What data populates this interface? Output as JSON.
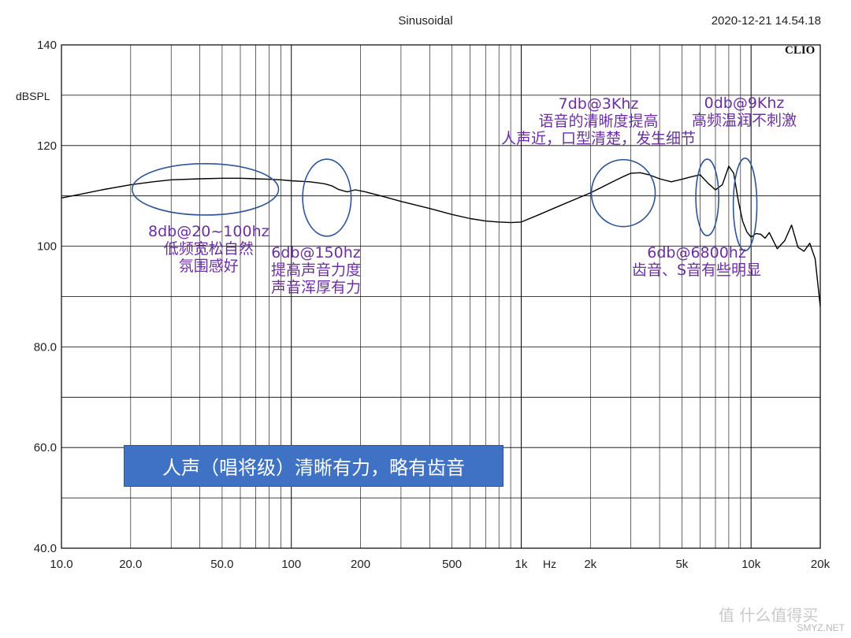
{
  "header": {
    "title": "Sinusoidal",
    "timestamp": "2020-12-21 14.54.18",
    "brand": "CLIO"
  },
  "chart_data": {
    "type": "line",
    "title": "Sinusoidal",
    "xlabel": "Hz",
    "ylabel": "dBSPL",
    "x_scale": "log",
    "xlim": [
      10,
      20000
    ],
    "ylim": [
      40,
      140
    ],
    "grid": true,
    "x_tick_labels": [
      {
        "value": 10,
        "label": "10.0"
      },
      {
        "value": 20,
        "label": "20.0"
      },
      {
        "value": 50,
        "label": "50.0"
      },
      {
        "value": 100,
        "label": "100"
      },
      {
        "value": 200,
        "label": "200"
      },
      {
        "value": 500,
        "label": "500"
      },
      {
        "value": 1000,
        "label": "1k"
      },
      {
        "value": 2000,
        "label": "2k"
      },
      {
        "value": 5000,
        "label": "5k"
      },
      {
        "value": 10000,
        "label": "10k"
      },
      {
        "value": 20000,
        "label": "20k"
      }
    ],
    "y_tick_labels": [
      {
        "value": 140,
        "label": "140"
      },
      {
        "value": 120,
        "label": "120"
      },
      {
        "value": 100,
        "label": "100"
      },
      {
        "value": 80,
        "label": "80.0"
      },
      {
        "value": 60,
        "label": "60.0"
      },
      {
        "value": 40,
        "label": "40.0"
      }
    ],
    "series": [
      {
        "color": "#000000",
        "x": [
          10,
          12,
          15,
          20,
          25,
          30,
          40,
          50,
          60,
          70,
          80,
          90,
          100,
          110,
          120,
          130,
          140,
          150,
          160,
          175,
          190,
          210,
          250,
          300,
          400,
          500,
          600,
          700,
          800,
          900,
          1000,
          1200,
          1500,
          2000,
          2500,
          2800,
          3000,
          3300,
          3600,
          4000,
          4500,
          5000,
          5500,
          6000,
          6500,
          7000,
          7500,
          8000,
          8400,
          8800,
          9200,
          9600,
          10000,
          10500,
          11000,
          11500,
          12000,
          13000,
          14000,
          15000,
          16000,
          17000,
          18000,
          19000,
          20000
        ],
        "y": [
          109.6,
          110.3,
          111.2,
          112.2,
          112.8,
          113.2,
          113.4,
          113.5,
          113.5,
          113.4,
          113.3,
          113.2,
          113.0,
          112.9,
          112.8,
          112.6,
          112.4,
          112.0,
          111.3,
          110.8,
          111.2,
          110.8,
          109.9,
          108.9,
          107.5,
          106.3,
          105.5,
          105.0,
          104.8,
          104.7,
          104.8,
          106.3,
          108.2,
          110.6,
          112.8,
          113.9,
          114.5,
          114.6,
          114.2,
          113.4,
          112.8,
          113.3,
          113.8,
          114.2,
          112.5,
          111.2,
          112.2,
          115.9,
          114.5,
          109.0,
          104.9,
          102.8,
          101.8,
          102.5,
          102.4,
          101.6,
          102.7,
          99.5,
          101.1,
          104.2,
          99.8,
          99.0,
          100.6,
          97.5,
          88.0
        ]
      }
    ],
    "annotations": [
      {
        "text": [
          "8db@20~100hz",
          "低频宽松自然",
          "氛围感好"
        ],
        "ellipse": {
          "x_center": 42,
          "y_center": 111.3,
          "x_min": 20.3,
          "x_max": 88,
          "y_min": 106.2,
          "y_max": 116.4
        }
      },
      {
        "text": [
          "6db@150hz",
          "提高声音力度",
          "声音浑厚有力"
        ],
        "ellipse": {
          "x_center": 143,
          "y_center": 109.7,
          "x_min": 112,
          "x_max": 182,
          "y_min": 102.0,
          "y_max": 117.3
        }
      },
      {
        "text": [
          "7db@3Khz",
          "语音的清晰度提高",
          "人声近，口型清楚，发生细节"
        ],
        "ellipse": {
          "x_center": 2780,
          "y_center": 110.5,
          "x_min": 2020,
          "x_max": 3830,
          "y_min": 103.9,
          "y_max": 117.2
        }
      },
      {
        "text": [
          "0db@9Khz",
          "高频温润不刺激"
        ],
        "ellipse": {
          "x_center": 9450,
          "y_center": 108.9,
          "x_min": 8370,
          "x_max": 10600,
          "y_min": 99.1,
          "y_max": 117.5
        }
      },
      {
        "text": [
          "6db@6800hz",
          "齿音、S音有些明显"
        ],
        "ellipse": {
          "x_center": 6450,
          "y_center": 109.7,
          "x_min": 5750,
          "x_max": 7230,
          "y_min": 102.1,
          "y_max": 117.3
        }
      }
    ],
    "summary_box": {
      "text": "人声（唱将级）清晰有力，略有齿音",
      "color": "#3f72c4"
    }
  },
  "watermark": {
    "text": "值 什么值得买",
    "site": "SMYZ.NET"
  }
}
